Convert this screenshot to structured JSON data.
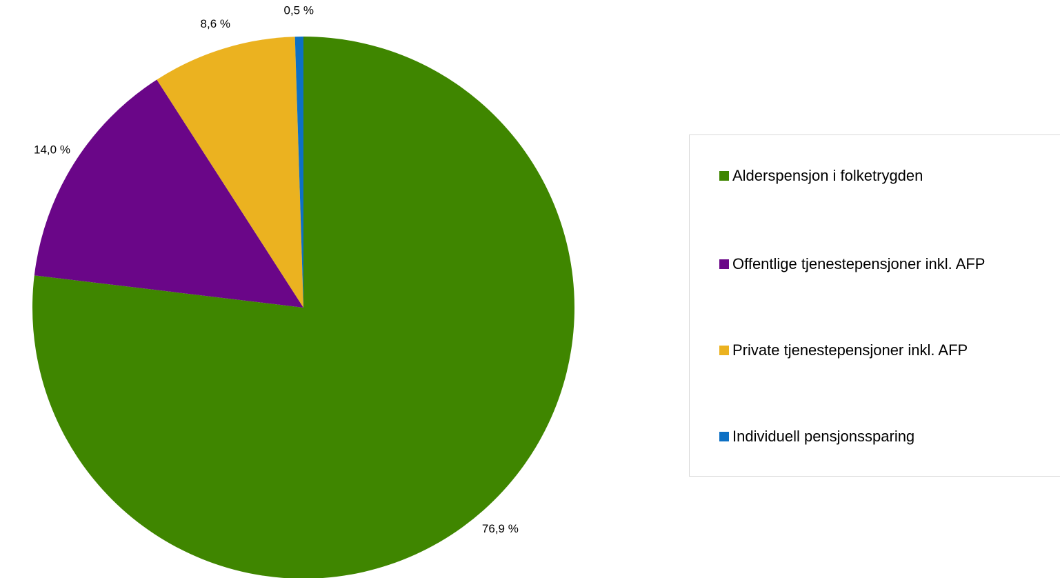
{
  "chart_data": {
    "type": "pie",
    "slices": [
      {
        "name": "Alderspensjon i folketrygden",
        "value": 76.9,
        "label": "76,9 %",
        "color": "#3f8600"
      },
      {
        "name": "Offentlige tjenestepensjoner inkl. AFP",
        "value": 14.0,
        "label": "14,0 %",
        "color": "#6a0688"
      },
      {
        "name": "Private tjenestepensjoner inkl. AFP",
        "value": 8.6,
        "label": "8,6 %",
        "color": "#ebb220"
      },
      {
        "name": "Individuell pensjonssparing",
        "value": 0.5,
        "label": "0,5 %",
        "color": "#0d70c4"
      }
    ],
    "legend_placement": "right",
    "start_angle": "12 o'clock",
    "direction": "clockwise"
  }
}
